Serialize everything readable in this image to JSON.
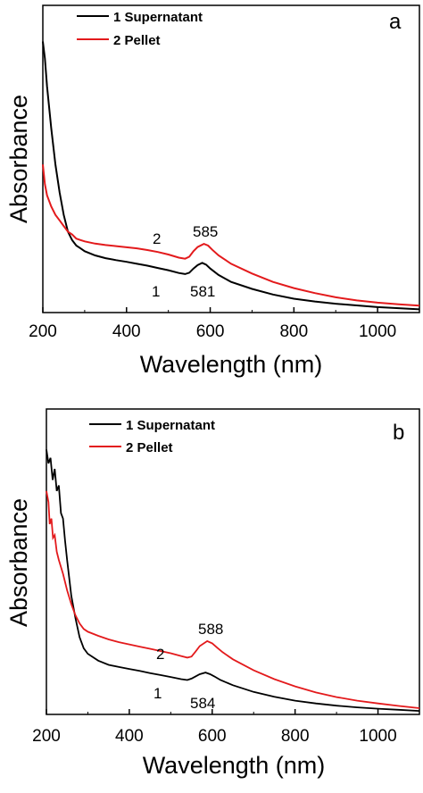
{
  "chart_data": [
    {
      "type": "line",
      "panel_label": "a",
      "xlabel": "Wavelength (nm)",
      "ylabel": "Absorbance",
      "xlim": [
        200,
        1100
      ],
      "ylim": [
        0,
        1
      ],
      "xticks": [
        200,
        400,
        600,
        800,
        1000
      ],
      "y_tick_labels": false,
      "legend_position": "top",
      "series": [
        {
          "name": "1 Supernatant",
          "color": "#000000",
          "x": [
            200,
            205,
            210,
            220,
            230,
            240,
            250,
            260,
            270,
            280,
            290,
            300,
            325,
            350,
            375,
            400,
            425,
            450,
            475,
            500,
            525,
            540,
            550,
            560,
            570,
            581,
            590,
            600,
            620,
            650,
            700,
            750,
            800,
            850,
            900,
            950,
            1000,
            1050,
            1100
          ],
          "values": [
            0.96,
            0.9,
            0.8,
            0.65,
            0.52,
            0.42,
            0.34,
            0.28,
            0.25,
            0.23,
            0.22,
            0.21,
            0.195,
            0.185,
            0.178,
            0.172,
            0.165,
            0.158,
            0.15,
            0.142,
            0.132,
            0.128,
            0.133,
            0.148,
            0.16,
            0.168,
            0.162,
            0.148,
            0.125,
            0.1,
            0.075,
            0.055,
            0.04,
            0.03,
            0.022,
            0.016,
            0.01,
            0.006,
            0.002
          ]
        },
        {
          "name": "2 Pellet",
          "color": "#e31a1c",
          "x": [
            200,
            205,
            210,
            220,
            230,
            240,
            250,
            260,
            270,
            280,
            290,
            300,
            325,
            350,
            375,
            400,
            425,
            450,
            475,
            500,
            525,
            540,
            550,
            560,
            570,
            585,
            595,
            605,
            620,
            650,
            700,
            750,
            800,
            850,
            900,
            950,
            1000,
            1050,
            1100
          ],
          "values": [
            0.52,
            0.45,
            0.41,
            0.37,
            0.34,
            0.32,
            0.3,
            0.28,
            0.27,
            0.255,
            0.25,
            0.245,
            0.237,
            0.232,
            0.228,
            0.224,
            0.22,
            0.214,
            0.207,
            0.198,
            0.187,
            0.183,
            0.19,
            0.21,
            0.225,
            0.236,
            0.23,
            0.215,
            0.195,
            0.165,
            0.13,
            0.1,
            0.078,
            0.06,
            0.045,
            0.034,
            0.026,
            0.02,
            0.015
          ]
        }
      ],
      "annotations": [
        "1",
        "581",
        "2",
        "585"
      ]
    },
    {
      "type": "line",
      "panel_label": "b",
      "xlabel": "Wavelength (nm)",
      "ylabel": "Absorbance",
      "xlim": [
        200,
        1100
      ],
      "ylim": [
        0,
        1
      ],
      "xticks": [
        200,
        400,
        600,
        800,
        1000
      ],
      "y_tick_labels": false,
      "legend_position": "top",
      "series": [
        {
          "name": "1 Supernatant",
          "color": "#000000",
          "x": [
            200,
            205,
            210,
            215,
            220,
            225,
            230,
            235,
            240,
            245,
            250,
            260,
            270,
            280,
            290,
            300,
            325,
            350,
            375,
            400,
            425,
            450,
            475,
            500,
            525,
            540,
            550,
            560,
            570,
            584,
            595,
            605,
            620,
            650,
            700,
            750,
            800,
            850,
            900,
            950,
            1000,
            1050,
            1100
          ],
          "values": [
            0.95,
            0.9,
            0.92,
            0.84,
            0.88,
            0.8,
            0.82,
            0.72,
            0.7,
            0.62,
            0.55,
            0.42,
            0.34,
            0.27,
            0.23,
            0.21,
            0.185,
            0.17,
            0.162,
            0.155,
            0.148,
            0.14,
            0.133,
            0.126,
            0.118,
            0.115,
            0.12,
            0.128,
            0.136,
            0.142,
            0.136,
            0.128,
            0.115,
            0.096,
            0.072,
            0.054,
            0.04,
            0.03,
            0.022,
            0.016,
            0.011,
            0.007,
            0.003
          ]
        },
        {
          "name": "2 Pellet",
          "color": "#e31a1c",
          "x": [
            200,
            205,
            208,
            212,
            216,
            220,
            225,
            230,
            240,
            250,
            260,
            270,
            280,
            290,
            300,
            325,
            350,
            375,
            400,
            425,
            450,
            475,
            500,
            525,
            540,
            550,
            560,
            570,
            588,
            600,
            612,
            625,
            650,
            700,
            750,
            800,
            850,
            900,
            950,
            1000,
            1050,
            1100
          ],
          "values": [
            0.8,
            0.76,
            0.68,
            0.7,
            0.63,
            0.64,
            0.58,
            0.55,
            0.5,
            0.44,
            0.39,
            0.35,
            0.32,
            0.3,
            0.29,
            0.275,
            0.262,
            0.252,
            0.244,
            0.236,
            0.228,
            0.22,
            0.212,
            0.202,
            0.196,
            0.2,
            0.218,
            0.238,
            0.256,
            0.248,
            0.232,
            0.216,
            0.19,
            0.15,
            0.118,
            0.092,
            0.07,
            0.053,
            0.04,
            0.03,
            0.021,
            0.013
          ]
        }
      ],
      "annotations": [
        "1",
        "584",
        "2",
        "588"
      ]
    }
  ]
}
